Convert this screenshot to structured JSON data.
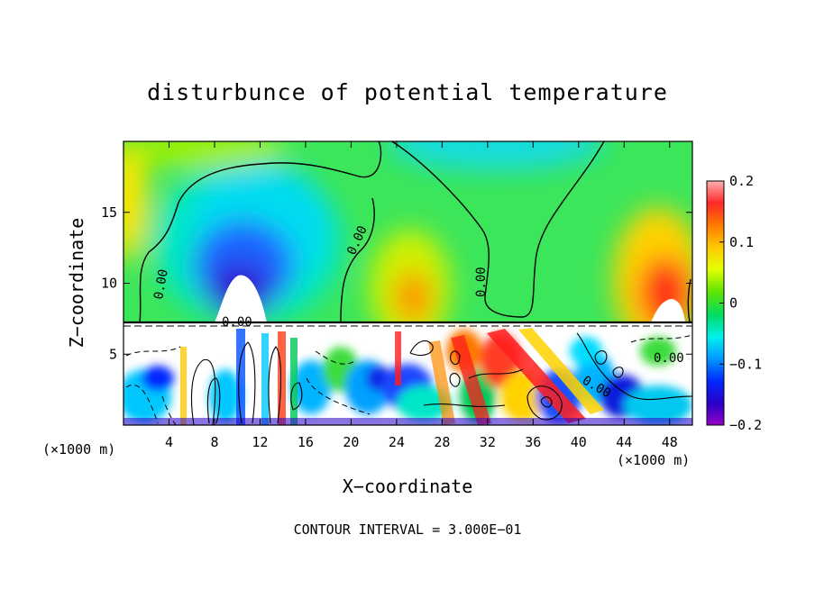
{
  "chart_data": {
    "type": "heatmap",
    "title": "disturbunce of potential temperature",
    "xlabel": "X−coordinate",
    "ylabel": "Z−coordinate",
    "x_unit_left": "(×1000 m)",
    "x_unit_right": "(×1000 m)",
    "xlim": [
      0,
      50
    ],
    "ylim": [
      0,
      20
    ],
    "x_ticks": [
      4,
      8,
      12,
      16,
      20,
      24,
      28,
      32,
      36,
      40,
      44,
      48
    ],
    "y_ticks": [
      5,
      10,
      15
    ],
    "colorbar": {
      "min": -0.2,
      "max": 0.2,
      "tick_values": [
        0.2,
        0.1,
        0,
        -0.1,
        -0.2
      ],
      "tick_labels": [
        "0.2",
        "0.1",
        "0",
        "−0.1",
        "−0.2"
      ]
    },
    "contour_label": "0.00",
    "contour_interval_text": "CONTOUR INTERVAL =  3.000E−01",
    "layer_boundary_z": 7.2,
    "upper_features": [
      {
        "x": 10.5,
        "z": 10.0,
        "value": -0.2
      },
      {
        "x": 12.0,
        "z": 15.0,
        "value": -0.12
      },
      {
        "x": 26.0,
        "z": 10.5,
        "value": 0.15
      },
      {
        "x": 33.0,
        "z": 18.5,
        "value": -0.06
      },
      {
        "x": 47.0,
        "z": 10.5,
        "value": 0.2
      },
      {
        "x": 1.0,
        "z": 17.0,
        "value": 0.08
      }
    ],
    "grid": false
  }
}
